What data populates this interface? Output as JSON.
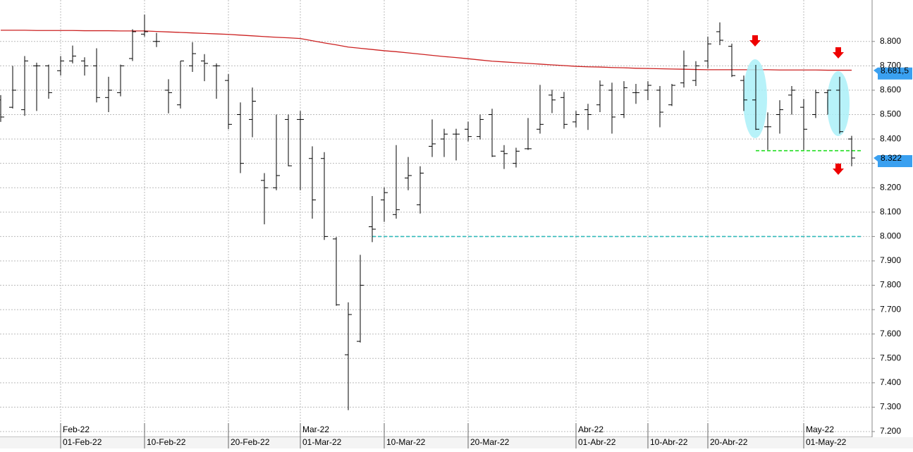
{
  "chart_data": {
    "type": "ohlc",
    "categories": [
      null,
      null,
      null,
      null,
      null,
      "01-Feb-22",
      null,
      null,
      null,
      null,
      null,
      null,
      "10-Feb-22",
      null,
      null,
      null,
      null,
      null,
      null,
      "20-Feb-22",
      null,
      null,
      null,
      null,
      null,
      "01-Mar-22",
      null,
      null,
      null,
      null,
      null,
      null,
      "10-Mar-22",
      null,
      null,
      null,
      null,
      null,
      null,
      "20-Mar-22",
      null,
      null,
      null,
      null,
      null,
      null,
      null,
      null,
      "01-Abr-22",
      null,
      null,
      null,
      null,
      null,
      "10-Abr-22",
      null,
      null,
      null,
      null,
      "20-Abr-22",
      null,
      null,
      null,
      null,
      null,
      null,
      null,
      "01-May-22",
      null,
      null,
      null,
      null
    ],
    "month_categories": [
      null,
      null,
      null,
      null,
      null,
      "Feb-22",
      null,
      null,
      null,
      null,
      null,
      null,
      null,
      null,
      null,
      null,
      null,
      null,
      null,
      null,
      null,
      null,
      null,
      null,
      null,
      "Mar-22",
      null,
      null,
      null,
      null,
      null,
      null,
      null,
      null,
      null,
      null,
      null,
      null,
      null,
      null,
      null,
      null,
      null,
      null,
      null,
      null,
      null,
      null,
      "Abr-22",
      null,
      null,
      null,
      null,
      null,
      null,
      null,
      null,
      null,
      null,
      null,
      null,
      null,
      null,
      null,
      null,
      null,
      null,
      "May-22",
      null,
      null,
      null,
      null
    ],
    "open": [
      8560,
      8530,
      8520,
      8700,
      8700,
      8680,
      8720,
      8720,
      8700,
      8570,
      8590,
      8730,
      8830,
      8800,
      8600,
      8540,
      8700,
      8720,
      8700,
      8640,
      8500,
      8480,
      8230,
      8200,
      8480,
      8480,
      8320,
      8320,
      7990,
      7515,
      7570,
      8040,
      8150,
      8090,
      8240,
      8130,
      8370,
      8400,
      8420,
      8440,
      8410,
      8500,
      8350,
      8300,
      8360,
      8440,
      8580,
      8570,
      8470,
      8520,
      8540,
      8600,
      8500,
      8590,
      8600,
      8600,
      8540,
      8630,
      8640,
      8720,
      8840,
      8780,
      8640,
      8560,
      8450,
      8500,
      8580,
      8530,
      8500,
      8590,
      8600,
      8400
    ],
    "high": [
      8580,
      8700,
      8740,
      8713,
      8705,
      8740,
      8783,
      8735,
      8772,
      8655,
      8705,
      8850,
      8910,
      8835,
      8645,
      8720,
      8797,
      8748,
      8710,
      8666,
      8550,
      8611,
      8260,
      8500,
      8500,
      8515,
      8370,
      8346,
      7998,
      7730,
      7925,
      8166,
      8201,
      8375,
      8326,
      8288,
      8480,
      8442,
      8442,
      8471,
      8500,
      8524,
      8375,
      8364,
      8486,
      8622,
      8602,
      8593,
      8515,
      8544,
      8640,
      8631,
      8637,
      8626,
      8637,
      8617,
      8626,
      8763,
      8719,
      8820,
      8878,
      8791,
      8660,
      8704,
      8509,
      8559,
      8617,
      8564,
      8602,
      8602,
      8655,
      8413
    ],
    "low": [
      8470,
      8525,
      8495,
      8515,
      8565,
      8660,
      8710,
      8660,
      8550,
      8510,
      8575,
      8720,
      8820,
      8777,
      8505,
      8525,
      8675,
      8637,
      8565,
      8440,
      8260,
      8407,
      8050,
      8190,
      8288,
      8190,
      8073,
      7986,
      7716,
      7288,
      7565,
      7977,
      8060,
      8073,
      8190,
      8094,
      8326,
      8326,
      8312,
      8390,
      8398,
      8326,
      8277,
      8283,
      8355,
      8422,
      8506,
      8442,
      8448,
      8437,
      8510,
      8422,
      8486,
      8544,
      8559,
      8448,
      8535,
      8611,
      8617,
      8690,
      8785,
      8654,
      8515,
      8437,
      8355,
      8422,
      8500,
      8355,
      8486,
      8500,
      8422,
      8288
    ],
    "close": [
      8490,
      8600,
      8720,
      8700,
      8590,
      8720,
      8740,
      8700,
      8570,
      8600,
      8700,
      8840,
      8840,
      8800,
      8590,
      8720,
      8750,
      8710,
      8700,
      8460,
      8300,
      8555,
      8200,
      8250,
      8290,
      8480,
      8150,
      8000,
      7720,
      7680,
      7800,
      8030,
      8180,
      8110,
      8250,
      8260,
      8380,
      8420,
      8420,
      8410,
      8480,
      8330,
      8340,
      8350,
      8360,
      8460,
      8560,
      8460,
      8500,
      8500,
      8620,
      8490,
      8610,
      8590,
      8620,
      8510,
      8620,
      8700,
      8700,
      8790,
      8805,
      8660,
      8560,
      8440,
      8450,
      8520,
      8600,
      8440,
      8590,
      8600,
      8430,
      8322
    ],
    "ma": {
      "color": "#cc2222",
      "values": [
        8846,
        8846,
        8846,
        8845,
        8845,
        8845,
        8845,
        8844,
        8844,
        8844,
        8843,
        8843,
        8843,
        8841,
        8839,
        8837,
        8835,
        8833,
        8831,
        8829,
        8826,
        8823,
        8820,
        8817,
        8815,
        8812,
        8803,
        8794,
        8786,
        8777,
        8772,
        8767,
        8762,
        8758,
        8753,
        8748,
        8743,
        8738,
        8734,
        8729,
        8724,
        8719,
        8716,
        8713,
        8710,
        8707,
        8704,
        8701,
        8698,
        8696,
        8695,
        8693,
        8692,
        8690,
        8689,
        8688,
        8687,
        8686,
        8685,
        8684,
        8684,
        8684,
        8684,
        8684,
        8684,
        8683,
        8683,
        8683,
        8683,
        8682,
        8682,
        8682
      ]
    },
    "levels": [
      {
        "value": 8000,
        "color": "#33bbbb",
        "from": 31
      },
      {
        "value": 8352,
        "color": "#22dd22",
        "from": 63
      }
    ],
    "markers": [
      {
        "value": 8681.5,
        "label": "8.681,5"
      },
      {
        "value": 8322,
        "label": "8.322"
      }
    ],
    "ylim": [
      7200,
      8970
    ],
    "yticks": [
      {
        "value": 7200,
        "label": "7.200"
      },
      {
        "value": 7300,
        "label": "7.300"
      },
      {
        "value": 7400,
        "label": "7.400"
      },
      {
        "value": 7500,
        "label": "7.500"
      },
      {
        "value": 7600,
        "label": "7.600"
      },
      {
        "value": 7700,
        "label": "7.700"
      },
      {
        "value": 7800,
        "label": "7.800"
      },
      {
        "value": 7900,
        "label": "7.900"
      },
      {
        "value": 8000,
        "label": "8.000"
      },
      {
        "value": 8100,
        "label": "8.100"
      },
      {
        "value": 8200,
        "label": "8.200"
      },
      {
        "value": 8300,
        "label": "8.300"
      },
      {
        "value": 8400,
        "label": "8.400"
      },
      {
        "value": 8500,
        "label": "8.500"
      },
      {
        "value": 8600,
        "label": "8.600"
      },
      {
        "value": 8700,
        "label": "8.700"
      },
      {
        "value": 8800,
        "label": "8.800"
      }
    ],
    "grid": true
  }
}
